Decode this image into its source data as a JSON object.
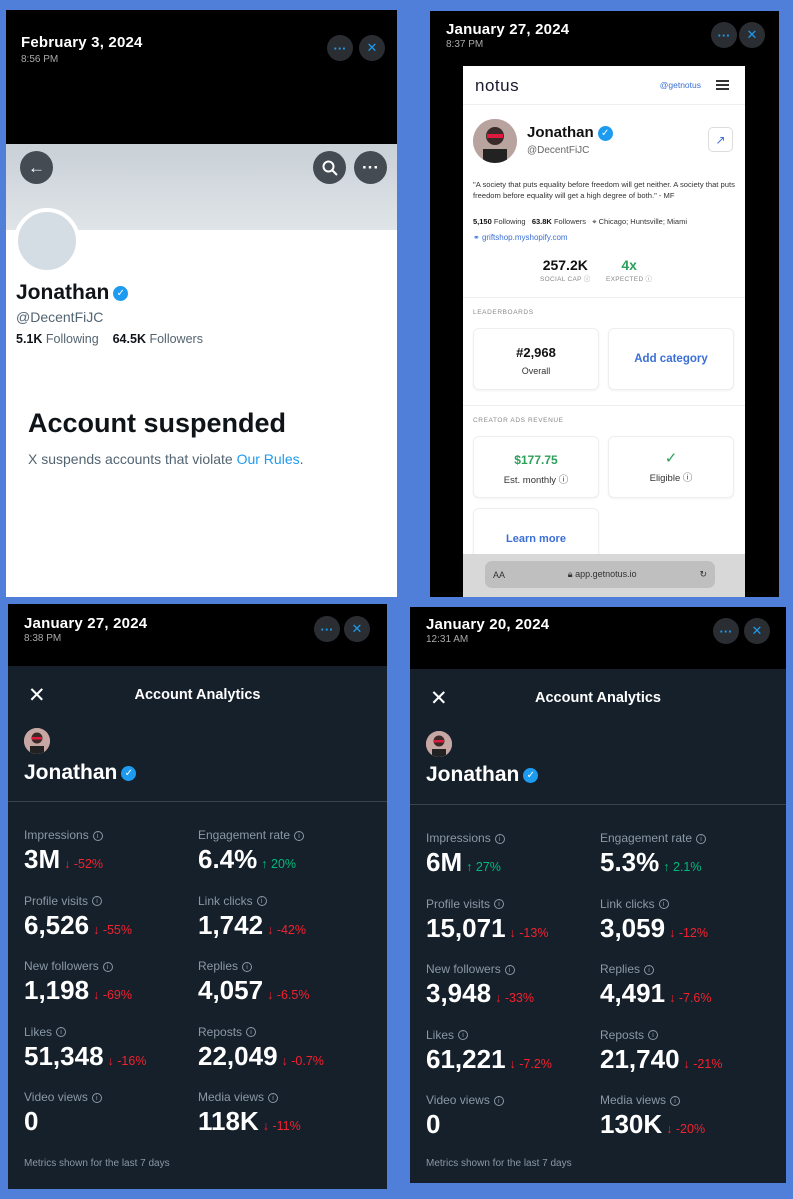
{
  "panel1": {
    "date": "February 3, 2024",
    "time": "8:56 PM",
    "name": "Jonathan",
    "handle": "@DecentFiJC",
    "following_count": "5.1K",
    "following_label": "Following",
    "followers_count": "64.5K",
    "followers_label": "Followers",
    "suspended_title": "Account suspended",
    "suspended_text": "X suspends accounts that violate ",
    "suspended_link": "Our Rules",
    "suspended_end": "."
  },
  "panel2": {
    "date": "January 27, 2024",
    "time": "8:37 PM",
    "logo": "notus",
    "nav_handle": "@getnotus",
    "name": "Jonathan",
    "handle": "@DecentFiJC",
    "bio": "\"A society that puts equality before freedom will get neither. A society that puts freedom before equality will get a high degree of both.\" - MF",
    "following_count": "5,150",
    "following_label": "Following",
    "followers_count": "63.8K",
    "followers_label": "Followers",
    "location": "Chicago; Huntsville; Miami",
    "link": "griftshop.myshopify.com",
    "social_cap": "257.2K",
    "social_cap_label": "SOCIAL CAP",
    "expected": "4x",
    "expected_label": "EXPECTED",
    "leaderboards_label": "LEADERBOARDS",
    "rank": "#2,968",
    "rank_label": "Overall",
    "add_category": "Add category",
    "ads_label": "CREATOR ADS REVENUE",
    "revenue": "$177.75",
    "revenue_label": "Est. monthly",
    "eligible_mark": "✓",
    "eligible_label": "Eligible",
    "learn_more": "Learn more",
    "url_aa": "AA",
    "url": "app.getnotus.io"
  },
  "panel3": {
    "date": "January 27, 2024",
    "time": "8:38 PM",
    "header": "Account Analytics",
    "name": "Jonathan",
    "footer": "Metrics shown for the last 7 days",
    "metrics": [
      {
        "label": "Impressions",
        "value": "3M",
        "change": "-52%",
        "dir": "down"
      },
      {
        "label": "Engagement rate",
        "value": "6.4%",
        "change": "20%",
        "dir": "up"
      },
      {
        "label": "Profile visits",
        "value": "6,526",
        "change": "-55%",
        "dir": "down"
      },
      {
        "label": "Link clicks",
        "value": "1,742",
        "change": "-42%",
        "dir": "down"
      },
      {
        "label": "New followers",
        "value": "1,198",
        "change": "-69%",
        "dir": "down"
      },
      {
        "label": "Replies",
        "value": "4,057",
        "change": "-6.5%",
        "dir": "down"
      },
      {
        "label": "Likes",
        "value": "51,348",
        "change": "-16%",
        "dir": "down"
      },
      {
        "label": "Reposts",
        "value": "22,049",
        "change": "-0.7%",
        "dir": "down"
      },
      {
        "label": "Video views",
        "value": "0",
        "change": "",
        "dir": ""
      },
      {
        "label": "Media views",
        "value": "118K",
        "change": "-11%",
        "dir": "down"
      }
    ]
  },
  "panel4": {
    "date": "January 20, 2024",
    "time": "12:31 AM",
    "header": "Account Analytics",
    "name": "Jonathan",
    "footer": "Metrics shown for the last 7 days",
    "metrics": [
      {
        "label": "Impressions",
        "value": "6M",
        "change": "27%",
        "dir": "up"
      },
      {
        "label": "Engagement rate",
        "value": "5.3%",
        "change": "2.1%",
        "dir": "up"
      },
      {
        "label": "Profile visits",
        "value": "15,071",
        "change": "-13%",
        "dir": "down"
      },
      {
        "label": "Link clicks",
        "value": "3,059",
        "change": "-12%",
        "dir": "down"
      },
      {
        "label": "New followers",
        "value": "3,948",
        "change": "-33%",
        "dir": "down"
      },
      {
        "label": "Replies",
        "value": "4,491",
        "change": "-7.6%",
        "dir": "down"
      },
      {
        "label": "Likes",
        "value": "61,221",
        "change": "-7.2%",
        "dir": "down"
      },
      {
        "label": "Reposts",
        "value": "21,740",
        "change": "-21%",
        "dir": "down"
      },
      {
        "label": "Video views",
        "value": "0",
        "change": "",
        "dir": ""
      },
      {
        "label": "Media views",
        "value": "130K",
        "change": "-20%",
        "dir": "down"
      }
    ]
  }
}
